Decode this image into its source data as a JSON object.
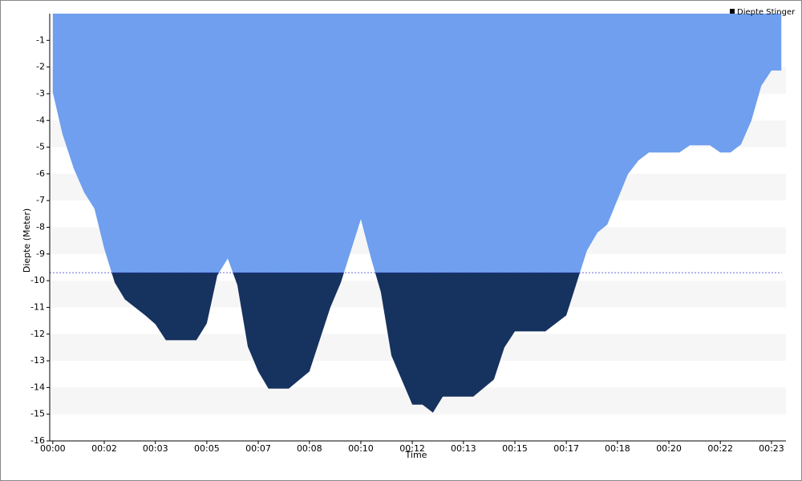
{
  "chart_data": {
    "type": "area",
    "xlabel": "Time",
    "ylabel": "Diepte (Meter)",
    "xlim": [
      -0.1,
      23.8
    ],
    "ylim": [
      -16,
      0
    ],
    "xticks": [
      {
        "value": 0,
        "label": "00:00"
      },
      {
        "value": 1.67,
        "label": "00:02"
      },
      {
        "value": 3.33,
        "label": "00:03"
      },
      {
        "value": 5,
        "label": "00:05"
      },
      {
        "value": 6.67,
        "label": "00:07"
      },
      {
        "value": 8.33,
        "label": "00:08"
      },
      {
        "value": 10,
        "label": "00:10"
      },
      {
        "value": 11.67,
        "label": "00:12"
      },
      {
        "value": 13.33,
        "label": "00:13"
      },
      {
        "value": 15,
        "label": "00:15"
      },
      {
        "value": 16.67,
        "label": "00:17"
      },
      {
        "value": 18.33,
        "label": "00:18"
      },
      {
        "value": 20,
        "label": "00:20"
      },
      {
        "value": 21.67,
        "label": "00:22"
      },
      {
        "value": 23.33,
        "label": "00:23"
      }
    ],
    "yticks": [
      -16,
      -15,
      -14,
      -13,
      -12,
      -11,
      -10,
      -9,
      -8,
      -7,
      -6,
      -5,
      -4,
      -3,
      -2,
      -1
    ],
    "threshold": -9.7,
    "threshold_color": "#3a3ad0",
    "legend": "upper right",
    "series": [
      {
        "name": "Diepte Stinger",
        "color": "#6f9fee",
        "below_color": "#16325f",
        "legend_color": "#000000",
        "x": [
          0,
          0.31,
          0.68,
          1.02,
          1.35,
          1.67,
          2.01,
          2.34,
          3.0,
          3.33,
          3.67,
          4.66,
          5.0,
          5.34,
          5.68,
          5.99,
          6.33,
          6.67,
          7.0,
          7.66,
          8.33,
          9.01,
          9.35,
          10.0,
          10.34,
          10.65,
          10.99,
          11.67,
          12.0,
          12.34,
          12.66,
          13.65,
          14.32,
          14.66,
          15.0,
          15.99,
          16.67,
          17.0,
          17.34,
          17.68,
          18.0,
          18.67,
          19.01,
          19.35,
          20.34,
          20.68,
          21.33,
          21.67,
          22.0,
          22.34,
          22.68,
          23.0,
          23.33,
          23.65
        ],
        "values": [
          -2.95,
          -4.5,
          -5.8,
          -6.7,
          -7.3,
          -8.8,
          -10.07,
          -10.7,
          -11.3,
          -11.63,
          -12.23,
          -12.23,
          -11.6,
          -9.8,
          -9.17,
          -10.16,
          -12.47,
          -13.4,
          -14.04,
          -14.04,
          -13.4,
          -11.0,
          -10.07,
          -7.7,
          -9.2,
          -10.43,
          -12.8,
          -14.64,
          -14.64,
          -14.94,
          -14.34,
          -14.34,
          -13.7,
          -12.5,
          -11.9,
          -11.9,
          -11.3,
          -10.1,
          -8.87,
          -8.2,
          -7.9,
          -6.01,
          -5.5,
          -5.2,
          -5.2,
          -4.93,
          -4.93,
          -5.2,
          -5.2,
          -4.9,
          -4.0,
          -2.7,
          -2.13,
          -2.13
        ]
      }
    ]
  }
}
